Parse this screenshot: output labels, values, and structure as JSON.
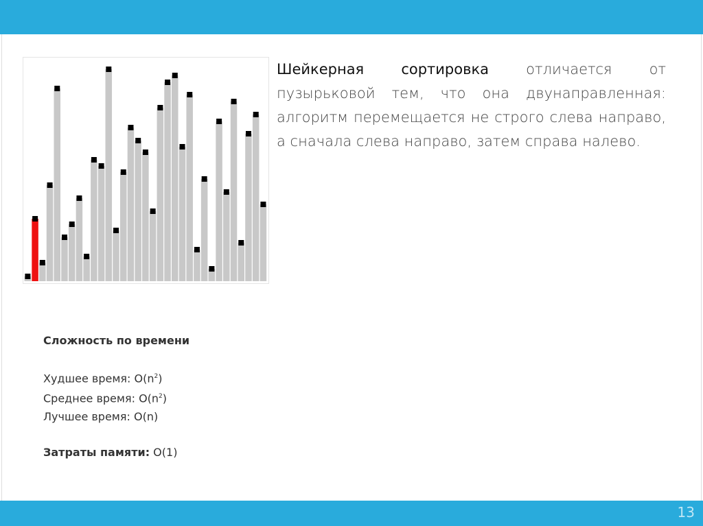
{
  "figure": {
    "values": [
      7,
      91,
      27,
      140,
      281,
      64,
      83,
      121,
      36,
      177,
      168,
      309,
      74,
      159,
      224,
      205,
      188,
      102,
      253,
      290,
      300,
      196,
      272,
      46,
      149,
      18,
      233,
      130,
      262,
      56,
      215,
      243,
      112
    ],
    "color": "#c8c8c8",
    "marker_color": "#000000",
    "highlight": 1,
    "highlight_color": "#ee1111"
  },
  "text": {
    "lead": "Шейкерная сортировка",
    "body": " отличается от пузырьковой тем, что она двунаправленная: алгоритм перемещается не строго слева направо, а сначала слева направо, затем справа налево."
  },
  "complexity": {
    "title": "Сложность по времени",
    "rows": [
      {
        "label": "Худшее время:",
        "value": " O(n",
        "sup": "2",
        "end": ")"
      },
      {
        "label": "Среднее время:",
        "value": " O(n",
        "sup": "2",
        "end": ")"
      },
      {
        "label": "Лучшее время:",
        "value": " O(n)"
      }
    ],
    "memory": {
      "label": "Затраты памяти:",
      "value": " O(1)"
    }
  },
  "page_number": "13"
}
